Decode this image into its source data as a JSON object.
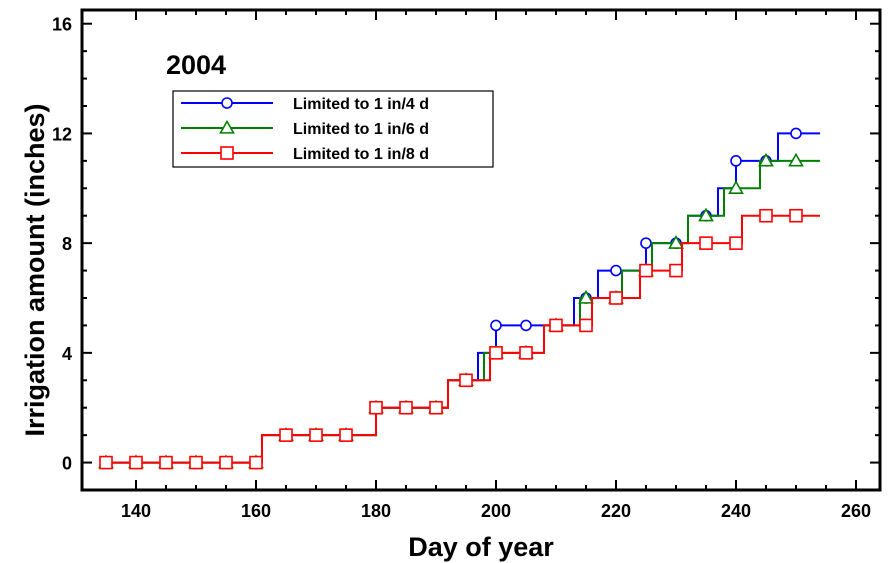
{
  "chart_data": {
    "type": "line",
    "step": true,
    "annotation": "2004",
    "xlabel": "Day of year",
    "ylabel": "Irrigation amount (inches)",
    "xlim": [
      131,
      264
    ],
    "ylim": [
      -1,
      16.5
    ],
    "xticks": [
      140,
      160,
      180,
      200,
      220,
      240,
      260
    ],
    "yticks": [
      0,
      4,
      8,
      12,
      16
    ],
    "legend_position": "top-left",
    "series": [
      {
        "name": "Limited to 1 in/4 d",
        "color": "#0000ff",
        "marker": "circle",
        "steps": [
          [
            135,
            0
          ],
          [
            161,
            1
          ],
          [
            180,
            2
          ],
          [
            192,
            3
          ],
          [
            197,
            4
          ],
          [
            200,
            5
          ],
          [
            208,
            5
          ],
          [
            213,
            6
          ],
          [
            217,
            7
          ],
          [
            225,
            8
          ],
          [
            228,
            8
          ],
          [
            232,
            9
          ],
          [
            237,
            10
          ],
          [
            240,
            11
          ],
          [
            247,
            12
          ],
          [
            254,
            12
          ]
        ],
        "markers": [
          [
            135,
            0
          ],
          [
            140,
            0
          ],
          [
            145,
            0
          ],
          [
            150,
            0
          ],
          [
            155,
            0
          ],
          [
            160,
            0
          ],
          [
            165,
            1
          ],
          [
            170,
            1
          ],
          [
            175,
            1
          ],
          [
            180,
            2
          ],
          [
            185,
            2
          ],
          [
            190,
            2
          ],
          [
            195,
            3
          ],
          [
            200,
            5
          ],
          [
            205,
            5
          ],
          [
            210,
            5
          ],
          [
            215,
            6
          ],
          [
            220,
            7
          ],
          [
            225,
            8
          ],
          [
            230,
            8
          ],
          [
            235,
            9
          ],
          [
            240,
            11
          ],
          [
            245,
            11
          ],
          [
            250,
            12
          ]
        ]
      },
      {
        "name": "Limited to 1 in/6 d",
        "color": "#008000",
        "marker": "triangle",
        "steps": [
          [
            135,
            0
          ],
          [
            161,
            1
          ],
          [
            180,
            2
          ],
          [
            192,
            3
          ],
          [
            198,
            4
          ],
          [
            208,
            5
          ],
          [
            214,
            6
          ],
          [
            221,
            7
          ],
          [
            226,
            8
          ],
          [
            232,
            9
          ],
          [
            238,
            10
          ],
          [
            244,
            11
          ],
          [
            254,
            11
          ]
        ],
        "markers": [
          [
            135,
            0
          ],
          [
            140,
            0
          ],
          [
            145,
            0
          ],
          [
            150,
            0
          ],
          [
            155,
            0
          ],
          [
            160,
            0
          ],
          [
            165,
            1
          ],
          [
            170,
            1
          ],
          [
            175,
            1
          ],
          [
            180,
            2
          ],
          [
            185,
            2
          ],
          [
            190,
            2
          ],
          [
            195,
            3
          ],
          [
            200,
            4
          ],
          [
            205,
            4
          ],
          [
            210,
            5
          ],
          [
            215,
            6
          ],
          [
            220,
            6
          ],
          [
            225,
            7
          ],
          [
            230,
            8
          ],
          [
            235,
            9
          ],
          [
            240,
            10
          ],
          [
            245,
            11
          ],
          [
            250,
            11
          ]
        ]
      },
      {
        "name": "Limited to 1 in/8 d",
        "color": "#ff0000",
        "marker": "square",
        "steps": [
          [
            135,
            0
          ],
          [
            161,
            1
          ],
          [
            180,
            2
          ],
          [
            192,
            3
          ],
          [
            199,
            4
          ],
          [
            208,
            5
          ],
          [
            216,
            6
          ],
          [
            224,
            7
          ],
          [
            231,
            8
          ],
          [
            241,
            9
          ],
          [
            254,
            9
          ]
        ],
        "markers": [
          [
            135,
            0
          ],
          [
            140,
            0
          ],
          [
            145,
            0
          ],
          [
            150,
            0
          ],
          [
            155,
            0
          ],
          [
            160,
            0
          ],
          [
            165,
            1
          ],
          [
            170,
            1
          ],
          [
            175,
            1
          ],
          [
            180,
            2
          ],
          [
            185,
            2
          ],
          [
            190,
            2
          ],
          [
            195,
            3
          ],
          [
            200,
            4
          ],
          [
            205,
            4
          ],
          [
            210,
            5
          ],
          [
            215,
            5
          ],
          [
            220,
            6
          ],
          [
            225,
            7
          ],
          [
            230,
            7
          ],
          [
            235,
            8
          ],
          [
            240,
            8
          ],
          [
            245,
            9
          ],
          [
            250,
            9
          ]
        ]
      }
    ]
  }
}
